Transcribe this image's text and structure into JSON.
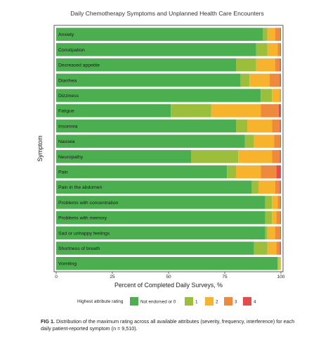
{
  "chart_data": {
    "type": "bar",
    "orientation": "horizontal",
    "stacked": true,
    "title": "Daily Chemotherapy Symptoms and Unplanned Health Care Encounters",
    "xlabel": "Percent of Completed Daily Surveys, %",
    "ylabel": "Symptom",
    "xlim": [
      0,
      100
    ],
    "xticks": [
      "0",
      "25",
      "50",
      "75",
      "100"
    ],
    "grid": false,
    "legend_title": "Highest attribute rating",
    "legend_position": "bottom",
    "categories": [
      "Anxiety",
      "Constipation",
      "Decreased appetite",
      "Diarrhea",
      "Dizziness",
      "Fatigue",
      "Insomnia",
      "Nausea",
      "Neuropathy",
      "Pain",
      "Pain in the abdomen",
      "Problems with concentration",
      "Problems with memory",
      "Sad or unhappy feelings",
      "Shortness of breath",
      "Vomiting"
    ],
    "series": [
      {
        "name": "Not endorsed or 0",
        "color": "#4bae4f",
        "values": [
          92,
          89,
          80,
          82,
          91,
          51,
          80,
          84,
          60,
          76,
          87,
          93,
          93,
          93,
          88,
          98.5
        ]
      },
      {
        "name": "1",
        "color": "#9bbf3a",
        "values": [
          2,
          5,
          9,
          4,
          5,
          18,
          5,
          4,
          21,
          4,
          3,
          3,
          3,
          1,
          6,
          0.5
        ]
      },
      {
        "name": "2",
        "color": "#f7b32b",
        "values": [
          3.5,
          4.5,
          8.5,
          9,
          3.5,
          22,
          11,
          9,
          15,
          11,
          7.5,
          2.5,
          2,
          3.5,
          4,
          1
        ]
      },
      {
        "name": "3",
        "color": "#ef8a3c",
        "values": [
          2.2,
          1.2,
          2,
          4.5,
          0.5,
          8,
          3.5,
          2.7,
          3.5,
          7,
          2,
          1.2,
          1.7,
          2.2,
          1.5,
          0
        ]
      },
      {
        "name": "4",
        "color": "#e8494a",
        "values": [
          0.3,
          0.3,
          0.5,
          0.5,
          0,
          1,
          0.5,
          0.3,
          0.5,
          2,
          0.5,
          0.3,
          0.3,
          0.3,
          0.5,
          0
        ]
      }
    ]
  },
  "caption": {
    "label": "FIG 1.",
    "text": "Distribution of the maximum rating across all available attributes (severity, frequency, interference) for each daily patient-reported symptom (n = 9,510)."
  }
}
